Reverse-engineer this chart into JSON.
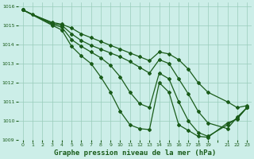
{
  "title": "Graphe pression niveau de la mer (hPa)",
  "background_color": "#cceee8",
  "grid_color": "#99ccbb",
  "line_color": "#1a5c1a",
  "xlim": [
    -0.5,
    23.5
  ],
  "ylim": [
    1009,
    1016.2
  ],
  "xtick_labels": [
    "0",
    "1",
    "2",
    "3",
    "4",
    "5",
    "6",
    "7",
    "8",
    "9",
    "10",
    "11",
    "12",
    "13",
    "14",
    "15",
    "16",
    "17",
    "18",
    "19",
    "",
    "21",
    "22",
    "23"
  ],
  "xtick_positions": [
    0,
    1,
    2,
    3,
    4,
    5,
    6,
    7,
    8,
    9,
    10,
    11,
    12,
    13,
    14,
    15,
    16,
    17,
    18,
    19,
    20,
    21,
    22,
    23
  ],
  "yticks": [
    1009,
    1010,
    1011,
    1012,
    1013,
    1014,
    1015,
    1016
  ],
  "lines": [
    {
      "x": [
        0,
        1,
        3,
        4,
        5,
        6,
        7,
        8,
        9,
        10,
        11,
        12,
        13,
        14,
        15,
        16,
        17,
        18,
        19,
        21,
        22,
        23
      ],
      "y": [
        1015.8,
        1015.55,
        1015.15,
        1015.05,
        1014.85,
        1014.55,
        1014.35,
        1014.15,
        1013.95,
        1013.75,
        1013.55,
        1013.35,
        1013.15,
        1013.6,
        1013.5,
        1013.2,
        1012.7,
        1012.0,
        1011.5,
        1011.0,
        1010.7,
        1010.8
      ]
    },
    {
      "x": [
        0,
        3,
        4,
        5,
        6,
        7,
        8,
        9,
        10,
        11,
        12,
        13,
        14,
        15,
        16,
        17,
        18,
        19,
        21,
        22,
        23
      ],
      "y": [
        1015.8,
        1015.1,
        1015.0,
        1014.55,
        1014.2,
        1013.95,
        1013.75,
        1013.55,
        1013.35,
        1013.1,
        1012.8,
        1012.5,
        1013.2,
        1013.0,
        1012.2,
        1011.4,
        1010.5,
        1009.9,
        1009.6,
        1010.2,
        1010.7
      ]
    },
    {
      "x": [
        0,
        3,
        4,
        5,
        6,
        7,
        8,
        9,
        10,
        11,
        12,
        13,
        14,
        15,
        16,
        17,
        18,
        19,
        21,
        22,
        23
      ],
      "y": [
        1015.8,
        1015.05,
        1014.9,
        1014.25,
        1013.9,
        1013.6,
        1013.3,
        1012.9,
        1012.3,
        1011.5,
        1010.9,
        1010.7,
        1012.5,
        1012.2,
        1011.0,
        1010.0,
        1009.4,
        1009.2,
        1009.8,
        1010.15,
        1010.7
      ]
    },
    {
      "x": [
        0,
        3,
        4,
        5,
        6,
        7,
        8,
        9,
        10,
        11,
        12,
        13,
        14,
        15,
        16,
        17,
        18,
        19,
        21,
        22,
        23
      ],
      "y": [
        1015.8,
        1015.0,
        1014.75,
        1013.9,
        1013.4,
        1013.0,
        1012.3,
        1011.5,
        1010.5,
        1009.8,
        1009.6,
        1009.55,
        1012.0,
        1011.5,
        1009.8,
        1009.5,
        1009.2,
        1009.15,
        1009.9,
        1010.1,
        1010.7
      ]
    }
  ],
  "marker": "D",
  "marker_size": 2,
  "line_width": 0.9,
  "title_fontsize": 6.5,
  "tick_fontsize": 4.5
}
